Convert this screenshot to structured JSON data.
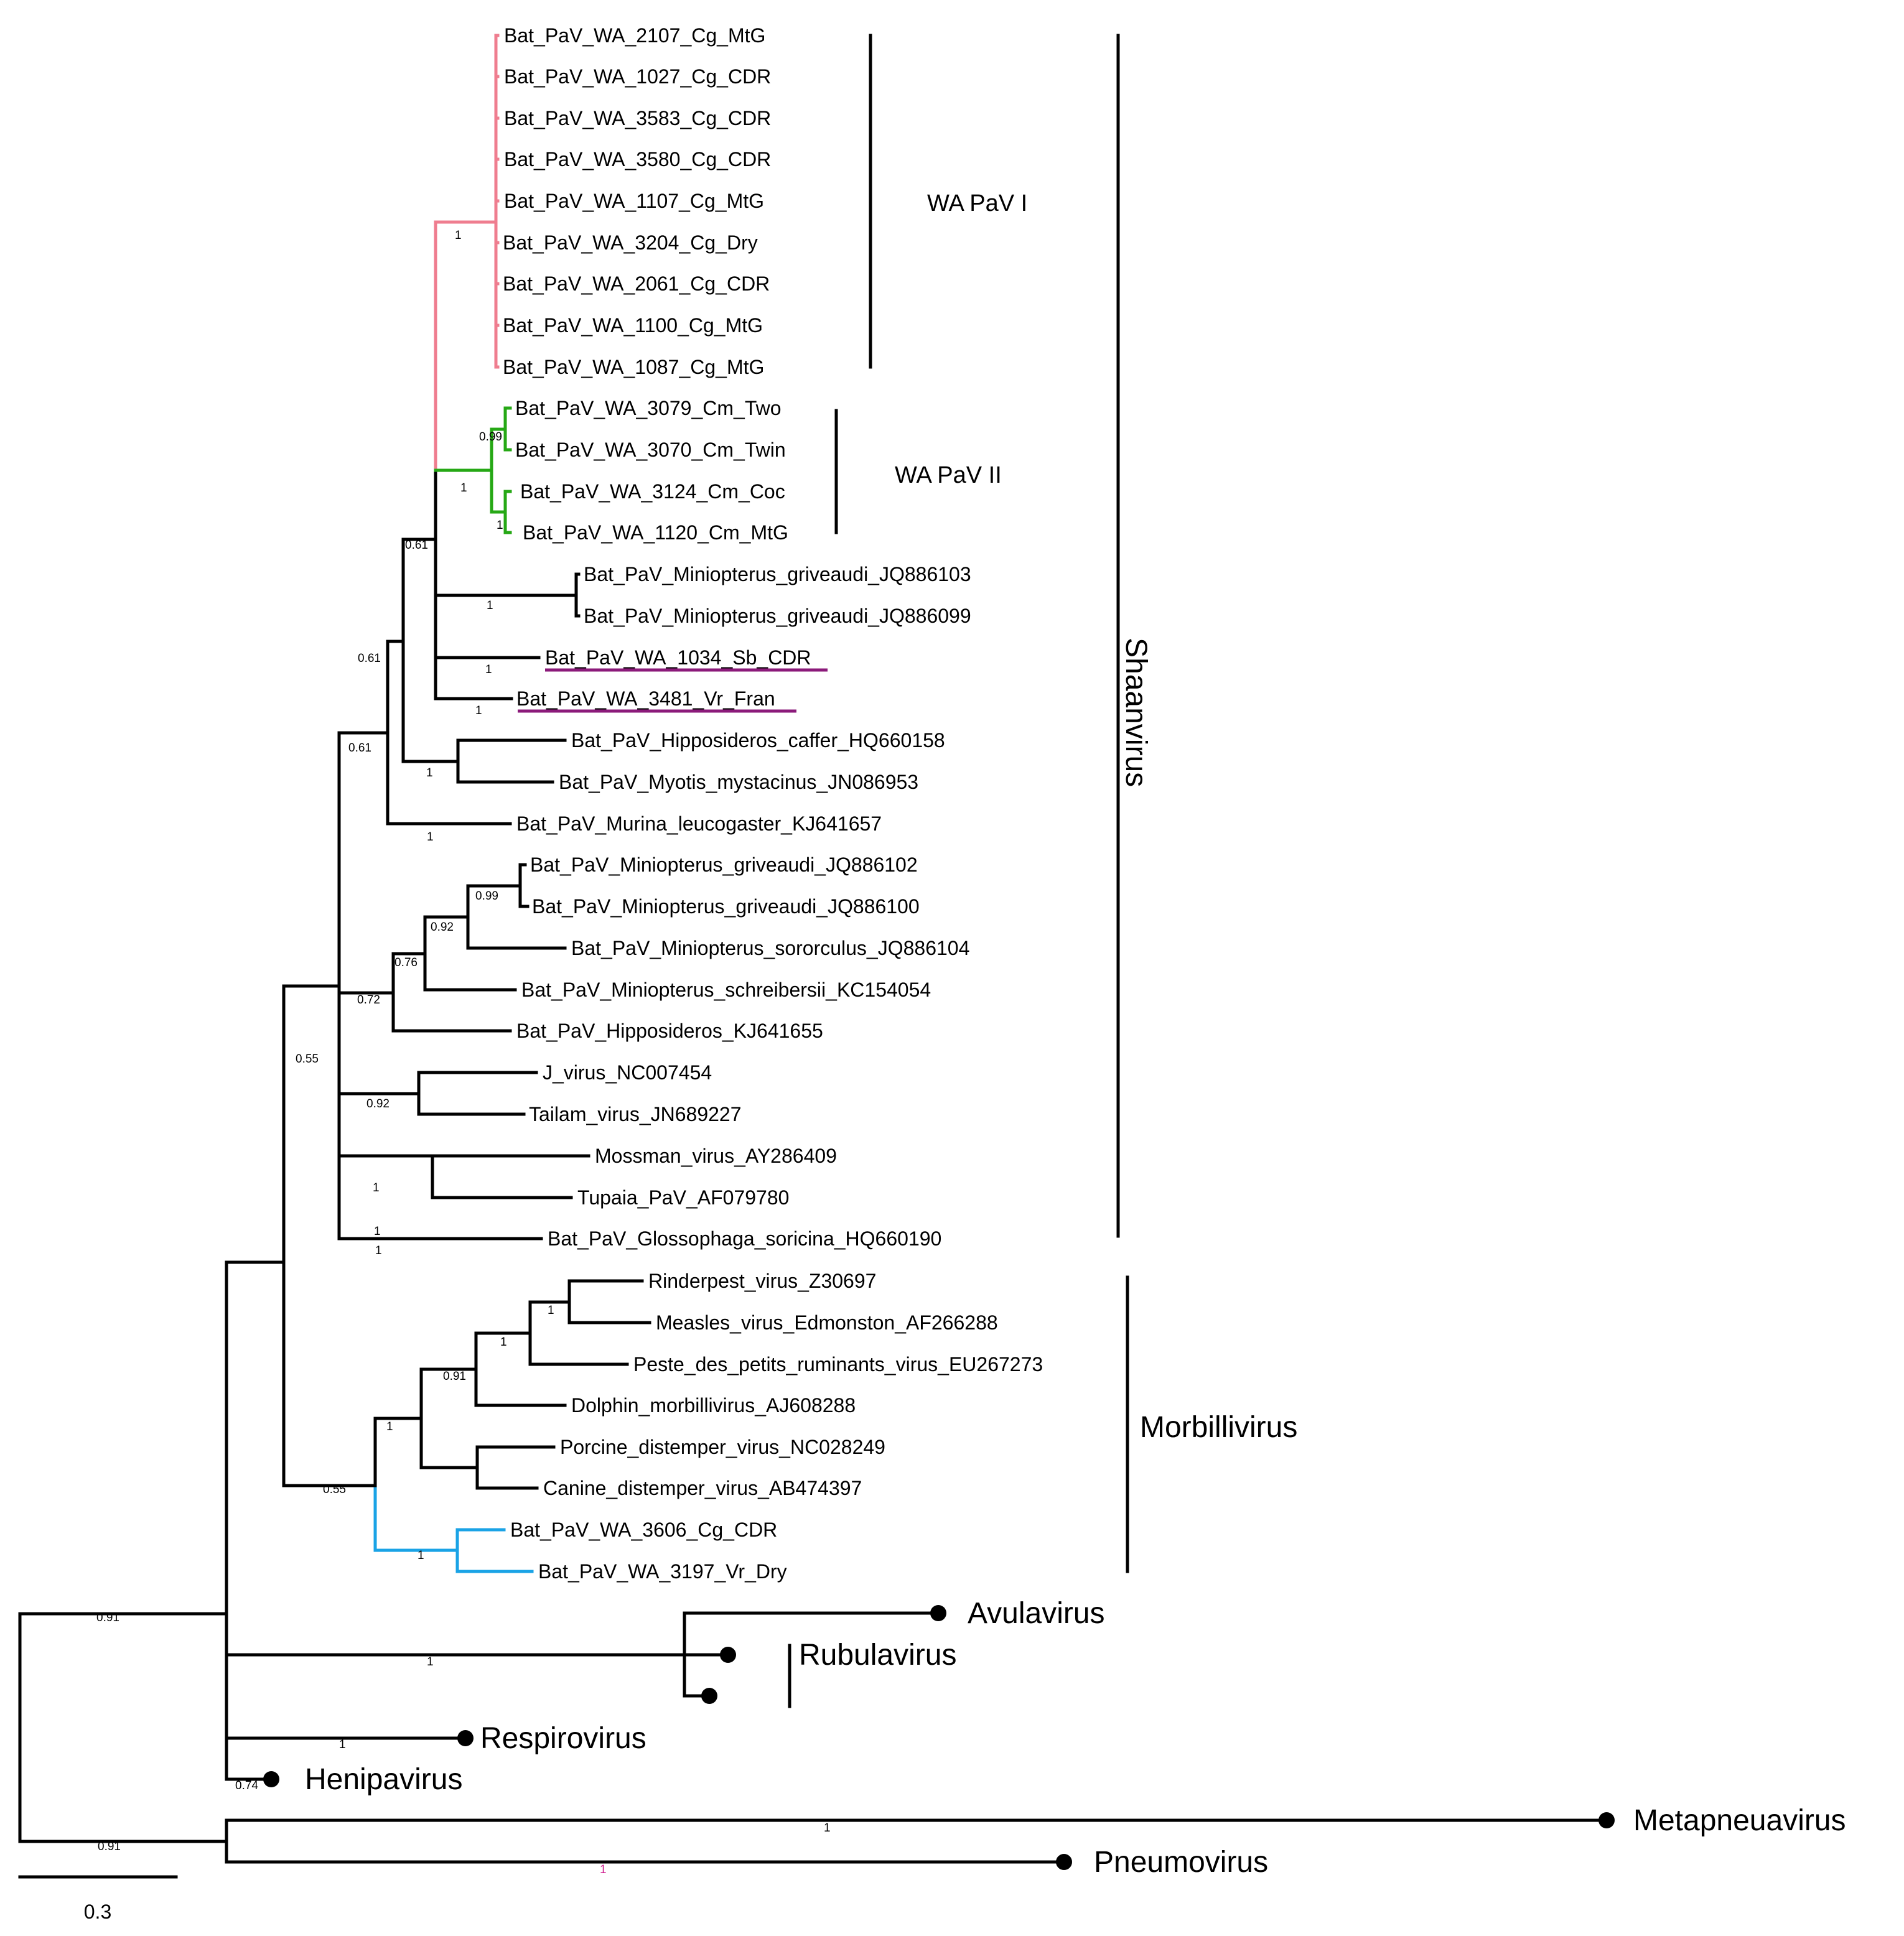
{
  "colors": {
    "default": "#000000",
    "wa_pav_i": "#ef7d8f",
    "wa_pav_ii": "#26a815",
    "morbilli_bat": "#1aa3e6",
    "highlight_underline": "#8b1a7a",
    "highlight_support": "#d02090"
  },
  "tips": [
    "Bat_PaV_WA_2107_Cg_MtG",
    "Bat_PaV_WA_1027_Cg_CDR",
    "Bat_PaV_WA_3583_Cg_CDR",
    "Bat_PaV_WA_3580_Cg_CDR",
    "Bat_PaV_WA_1107_Cg_MtG",
    "Bat_PaV_WA_3204_Cg_Dry",
    "Bat_PaV_WA_2061_Cg_CDR",
    "Bat_PaV_WA_1100_Cg_MtG",
    "Bat_PaV_WA_1087_Cg_MtG",
    "Bat_PaV_WA_3079_Cm_Two",
    "Bat_PaV_WA_3070_Cm_Twin",
    "Bat_PaV_WA_3124_Cm_Coc",
    "Bat_PaV_WA_1120_Cm_MtG",
    "Bat_PaV_Miniopterus_griveaudi_JQ886103",
    "Bat_PaV_Miniopterus_griveaudi_JQ886099",
    "Bat_PaV_WA_1034_Sb_CDR",
    "Bat_PaV_WA_3481_Vr_Fran",
    "Bat_PaV_Hipposideros_caffer_HQ660158",
    "Bat_PaV_Myotis_mystacinus_JN086953",
    "Bat_PaV_Murina_leucogaster_KJ641657",
    "Bat_PaV_Miniopterus_griveaudi_JQ886102",
    "Bat_PaV_Miniopterus_griveaudi_JQ886100",
    "Bat_PaV_Miniopterus_sororculus_JQ886104",
    "Bat_PaV_Miniopterus_schreibersii_KC154054",
    "Bat_PaV_Hipposideros_KJ641655",
    "J_virus_NC007454",
    "Tailam_virus_JN689227",
    "Mossman_virus_AY286409",
    "Tupaia_PaV_AF079780",
    "Bat_PaV_Glossophaga_soricina_HQ660190",
    "Rinderpest_virus_Z30697",
    "Measles_virus_Edmonston_AF266288",
    "Peste_des_petits_ruminants_virus_EU267273",
    "Dolphin_morbillivirus_AJ608288",
    "Porcine_distemper_virus_NC028249",
    "Canine_distemper_virus_AB474397",
    "Bat_PaV_WA_3606_Cg_CDR",
    "Bat_PaV_WA_3197_Vr_Dry"
  ],
  "support_values": [
    "1",
    "0.99",
    "1",
    "1",
    "0.61",
    "1",
    "1",
    "1",
    "0.61",
    "0.61",
    "1",
    "1",
    "0.99",
    "0.92",
    "0.76",
    "0.72",
    "0.92",
    "1",
    "0.55",
    "1",
    "1",
    "1",
    "1",
    "0.91",
    "1",
    "1",
    "0.55",
    "0.91",
    "1",
    "1",
    "0.74",
    "0.91",
    "1",
    "1"
  ],
  "collapsed_clades": [
    "Avulavirus",
    "Rubulavirus",
    "Respirovirus",
    "Henipavirus",
    "Metapneuavirus",
    "Pneumovirus"
  ],
  "clade_labels": {
    "wa_pav_i": "WA PaV I",
    "wa_pav_ii": "WA PaV II",
    "shaanvirus": "Shaanvirus",
    "morbillivirus": "Morbillivirus"
  },
  "scale_bar": {
    "label": "0.3",
    "value": 0.3
  }
}
